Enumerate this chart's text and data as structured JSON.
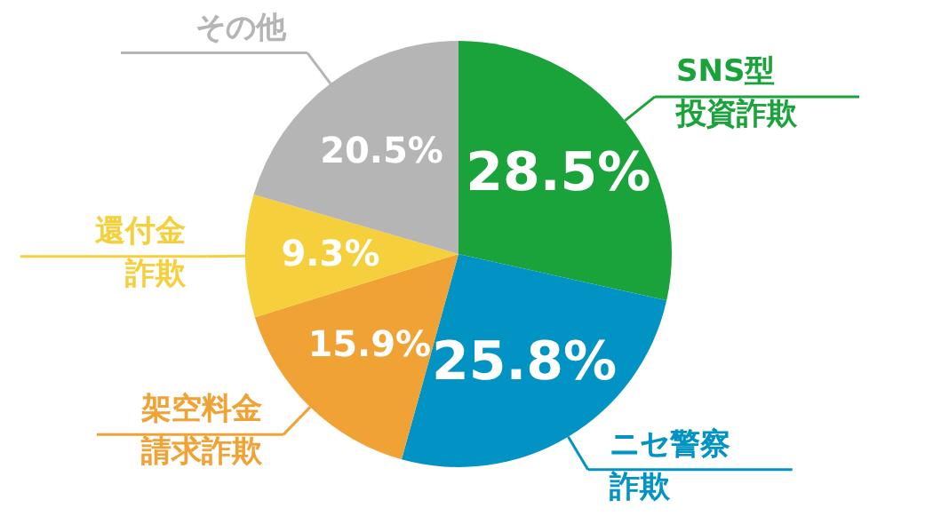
{
  "chart_data": {
    "type": "pie",
    "categories": [
      "SNS型投資詐欺",
      "ニセ警察詐欺",
      "架空料金請求詐欺",
      "還付金詐欺",
      "その他"
    ],
    "values": [
      28.5,
      25.8,
      15.9,
      9.3,
      20.5
    ],
    "colors": [
      "#1aa33a",
      "#0093c4",
      "#f0a234",
      "#f5d03c",
      "#b5b5b5"
    ],
    "value_labels": [
      "28.5%",
      "25.8%",
      "15.9%",
      "9.3%",
      "20.5%"
    ]
  }
}
